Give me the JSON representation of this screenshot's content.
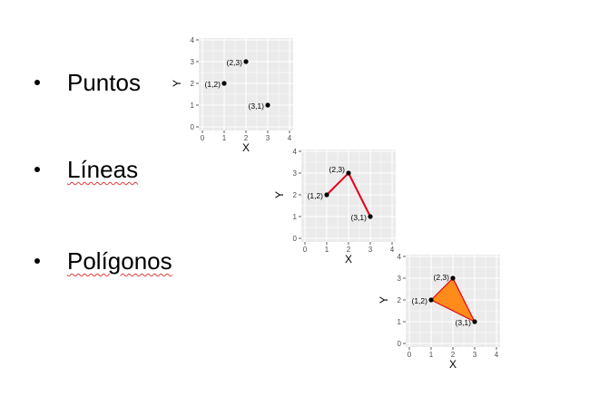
{
  "bullets": [
    {
      "text": "Puntos",
      "spellcheck": false
    },
    {
      "text": "Líneas",
      "spellcheck": true
    },
    {
      "text": "Polígonos",
      "spellcheck": true
    }
  ],
  "colors": {
    "panel": "#ebebeb",
    "grid_major": "#ffffff",
    "point": "#000000",
    "line": "#e8001c",
    "polygon_fill": "#ff8c1a",
    "polygon_edge": "#e8001c",
    "tick_text": "#4d4d4d",
    "squiggle": "#e23b3b"
  },
  "chart_data": [
    {
      "type": "scatter",
      "geom": "point",
      "x": [
        1,
        2,
        3
      ],
      "y": [
        2,
        3,
        1
      ],
      "labels": [
        "(1,2)",
        "(2,3)",
        "(3,1)"
      ],
      "xlabel": "X",
      "ylabel": "Y",
      "xlim": [
        0,
        4
      ],
      "ylim": [
        0,
        4
      ],
      "xticks": [
        "0",
        "1",
        "2",
        "3",
        "4"
      ],
      "yticks": [
        "0",
        "1",
        "2",
        "3",
        "4"
      ],
      "grid": true
    },
    {
      "type": "line",
      "geom": "path",
      "x": [
        1,
        2,
        3
      ],
      "y": [
        2,
        3,
        1
      ],
      "labels": [
        "(1,2)",
        "(2,3)",
        "(3,1)"
      ],
      "xlabel": "X",
      "ylabel": "Y",
      "xlim": [
        0,
        4
      ],
      "ylim": [
        0,
        4
      ],
      "xticks": [
        "0",
        "1",
        "2",
        "3",
        "4"
      ],
      "yticks": [
        "0",
        "1",
        "2",
        "3",
        "4"
      ],
      "grid": true
    },
    {
      "type": "area",
      "geom": "polygon",
      "x": [
        1,
        2,
        3
      ],
      "y": [
        2,
        3,
        1
      ],
      "labels": [
        "(1,2)",
        "(2,3)",
        "(3,1)"
      ],
      "xlabel": "X",
      "ylabel": "Y",
      "xlim": [
        0,
        4
      ],
      "ylim": [
        0,
        4
      ],
      "xticks": [
        "0",
        "1",
        "2",
        "3",
        "4"
      ],
      "yticks": [
        "0",
        "1",
        "2",
        "3",
        "4"
      ],
      "grid": true
    }
  ]
}
